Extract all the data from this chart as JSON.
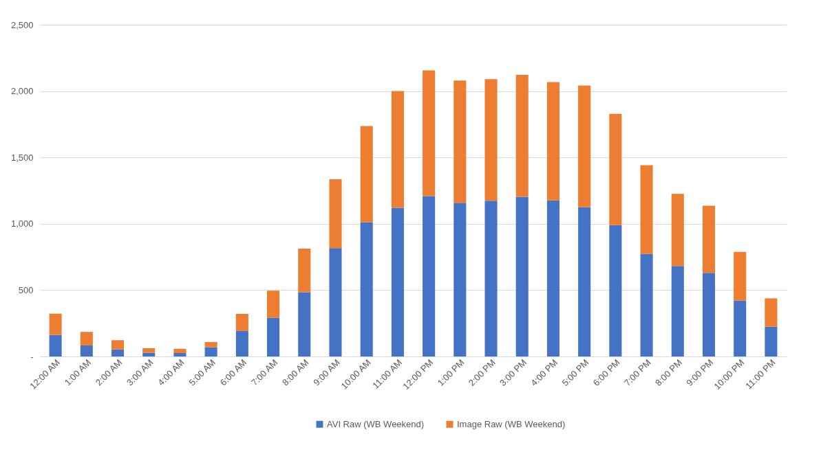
{
  "chart_data": {
    "type": "bar",
    "stacked": true,
    "categories": [
      "12:00 AM",
      "1:00 AM",
      "2:00 AM",
      "3:00 AM",
      "4:00 AM",
      "5:00 AM",
      "6:00 AM",
      "7:00 AM",
      "8:00 AM",
      "9:00 AM",
      "10:00 AM",
      "11:00 AM",
      "12:00 PM",
      "1:00 PM",
      "2:00 PM",
      "3:00 PM",
      "4:00 PM",
      "5:00 PM",
      "6:00 PM",
      "7:00 PM",
      "8:00 PM",
      "9:00 PM",
      "10:00 PM",
      "11:00 PM"
    ],
    "series": [
      {
        "name": "AVI Raw (WB Weekend)",
        "color": "#4472c4",
        "values": [
          163,
          83,
          54,
          28,
          26,
          69,
          192,
          292,
          484,
          817,
          1012,
          1120,
          1208,
          1158,
          1174,
          1204,
          1176,
          1124,
          990,
          774,
          682,
          630,
          422,
          224
        ]
      },
      {
        "name": "Image Raw (WB Weekend)",
        "color": "#ed7d31",
        "values": [
          160,
          102,
          69,
          34,
          32,
          40,
          129,
          204,
          329,
          518,
          724,
          880,
          948,
          922,
          916,
          918,
          892,
          918,
          838,
          668,
          544,
          506,
          366,
          214
        ]
      }
    ],
    "ylim": [
      0,
      2500
    ],
    "yticks": [
      {
        "value": 0,
        "label": "-"
      },
      {
        "value": 500,
        "label": "500"
      },
      {
        "value": 1000,
        "label": "1,000"
      },
      {
        "value": 1500,
        "label": "1,500"
      },
      {
        "value": 2000,
        "label": "2,000"
      },
      {
        "value": 2500,
        "label": "2,500"
      }
    ],
    "grid": "y",
    "legend": "bottom"
  }
}
